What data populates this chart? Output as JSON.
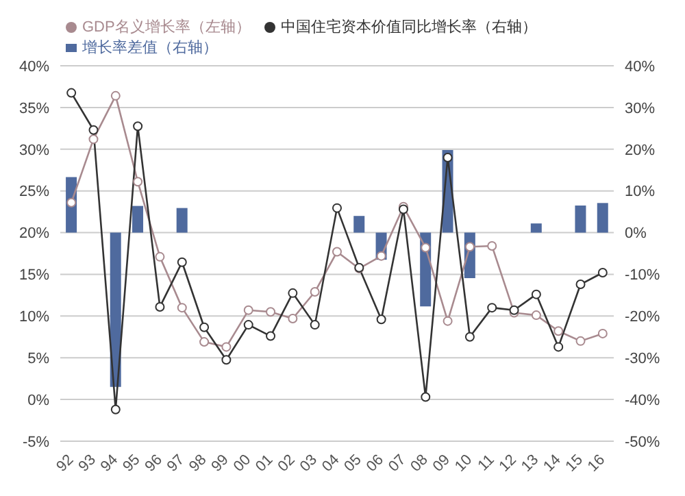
{
  "chart_data": {
    "type": "bar",
    "categories": [
      "92",
      "93",
      "94",
      "95",
      "96",
      "97",
      "98",
      "99",
      "00",
      "01",
      "02",
      "03",
      "04",
      "05",
      "06",
      "07",
      "08",
      "09",
      "10",
      "11",
      "12",
      "13",
      "14",
      "15",
      "16"
    ],
    "series": [
      {
        "name": "增长率差值（右轴）",
        "axis": "y2",
        "color": "#4f6a9e",
        "values": [
          13.3,
          null,
          -37,
          6.4,
          null,
          5.9,
          null,
          null,
          null,
          null,
          null,
          null,
          null,
          4,
          -6.5,
          null,
          -17.7,
          19.8,
          -10.9,
          null,
          null,
          2.2,
          null,
          6.5,
          7.1
        ]
      },
      {
        "name": "GDP名义增长率（左轴）",
        "type": "line",
        "color": "#a88a8f",
        "values": [
          23.6,
          31.2,
          36.4,
          26.1,
          17.1,
          11,
          6.9,
          6.3,
          10.7,
          10.5,
          9.7,
          12.9,
          17.7,
          15.7,
          17.2,
          23.1,
          18.2,
          9.4,
          18.3,
          18.4,
          10.4,
          10.1,
          8.2,
          7,
          7.9
        ]
      },
      {
        "name": "中国住宅资本价值同比增长率（右轴）",
        "type": "line",
        "axis": "y2",
        "color": "#333333",
        "values": [
          33.5,
          24.6,
          -42.4,
          25.5,
          -17.8,
          -7.1,
          -22.7,
          -30.5,
          -22.1,
          -24.8,
          -14.5,
          -22.1,
          5.9,
          -8.4,
          -20.8,
          5.6,
          -39.4,
          18,
          -25,
          -18,
          -18.6,
          -14.8,
          -27.4,
          -12.4,
          -9.6
        ]
      }
    ],
    "ylim": [
      -5,
      40
    ],
    "yticks": [
      {
        "value": -5,
        "label": "-5%"
      },
      {
        "value": 0,
        "label": "0%"
      },
      {
        "value": 5,
        "label": "5%"
      },
      {
        "value": 10,
        "label": "10%"
      },
      {
        "value": 15,
        "label": "15%"
      },
      {
        "value": 20,
        "label": "20%"
      },
      {
        "value": 25,
        "label": "25%"
      },
      {
        "value": 30,
        "label": "30%"
      },
      {
        "value": 35,
        "label": "35%"
      },
      {
        "value": 40,
        "label": "40%"
      }
    ],
    "y2lim": [
      -50,
      40
    ],
    "y2ticks": [
      {
        "value": -50,
        "label": "-50%"
      },
      {
        "value": -40,
        "label": "-40%"
      },
      {
        "value": -30,
        "label": "-30%"
      },
      {
        "value": -20,
        "label": "-20%"
      },
      {
        "value": -10,
        "label": "-10%"
      },
      {
        "value": 0,
        "label": "0%"
      },
      {
        "value": 10,
        "label": "10%"
      },
      {
        "value": 20,
        "label": "20%"
      },
      {
        "value": 30,
        "label": "30%"
      },
      {
        "value": 40,
        "label": "40%"
      }
    ],
    "grid": "y",
    "legend": "top left",
    "marker": "circle",
    "line_style": "solid"
  }
}
